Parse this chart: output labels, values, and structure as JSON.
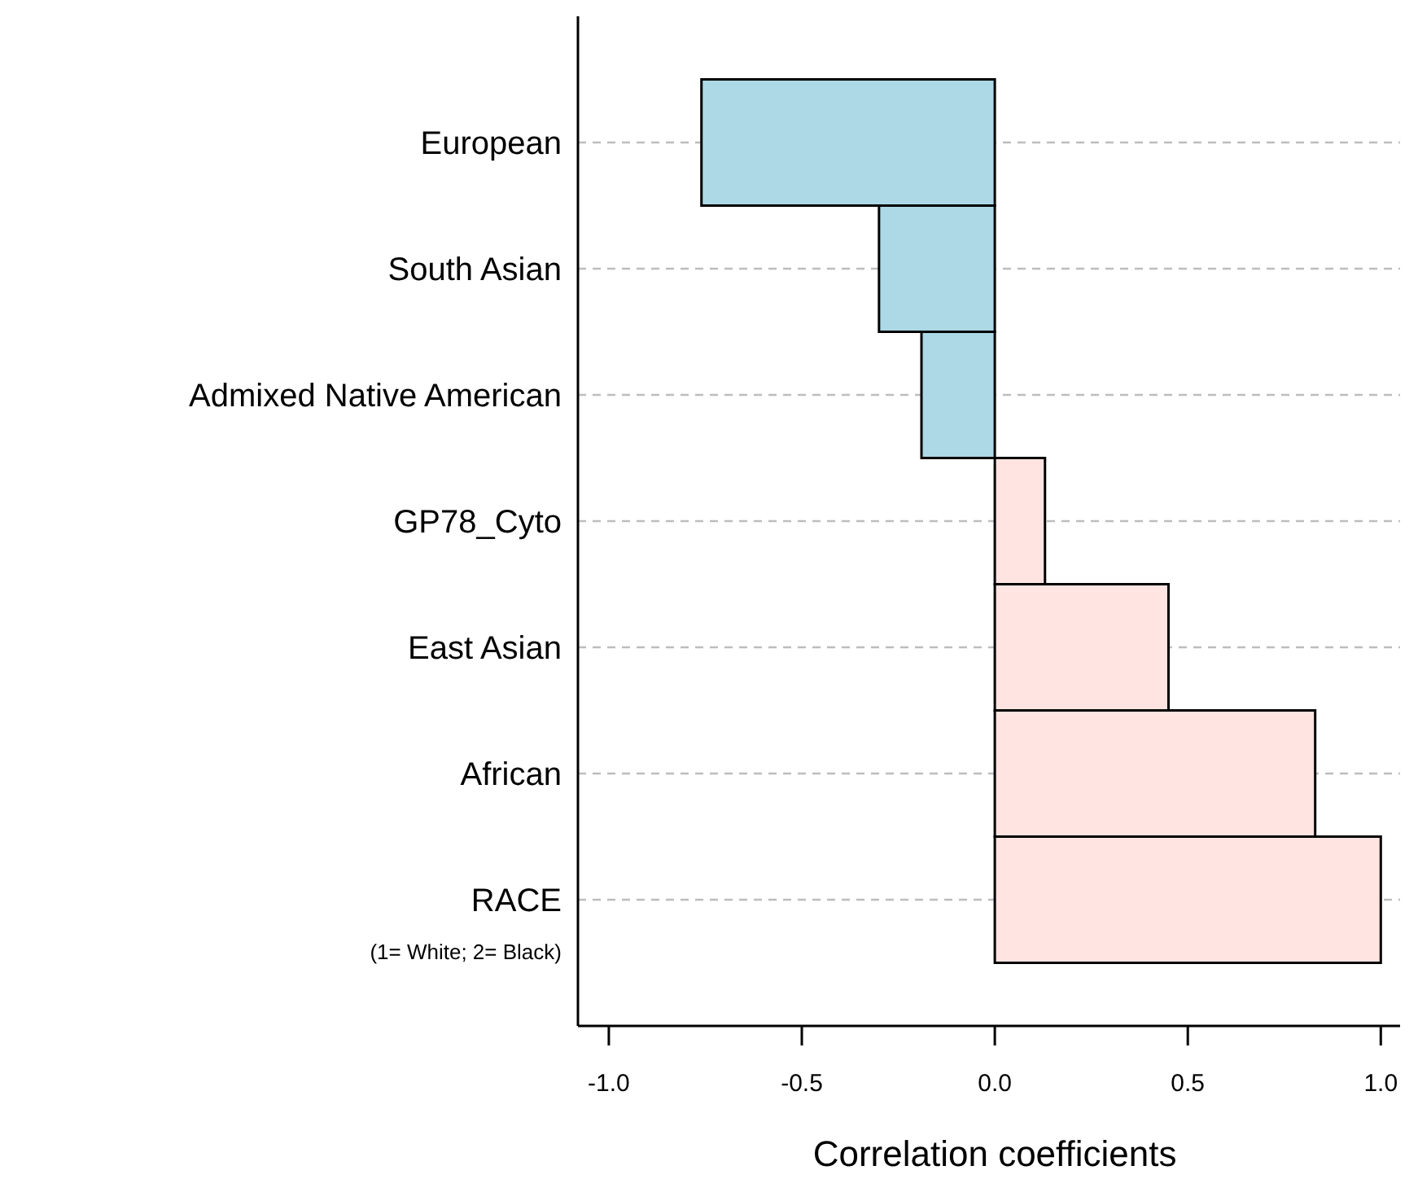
{
  "chart_data": {
    "type": "bar",
    "orientation": "horizontal",
    "categories": [
      "European",
      "South Asian",
      "Admixed Native American",
      "GP78_Cyto",
      "East Asian",
      "African",
      "RACE"
    ],
    "values": [
      -0.76,
      -0.3,
      -0.19,
      0.13,
      0.45,
      0.83,
      1.0
    ],
    "colors": [
      "#add8e6",
      "#add8e6",
      "#add8e6",
      "#ffe4e1",
      "#ffe4e1",
      "#ffe4e1",
      "#ffe4e1"
    ],
    "xlabel": "Correlation coefficients",
    "xlim": [
      -1.08,
      1.05
    ],
    "xticks": [
      {
        "value": -1,
        "label": "-1.0"
      },
      {
        "value": -0.5,
        "label": "-0.5"
      },
      {
        "value": 0,
        "label": "0.0"
      },
      {
        "value": 0.5,
        "label": "0.5"
      },
      {
        "value": 1,
        "label": "1.0"
      }
    ],
    "annotations": [
      "(1= White; 2= Black)"
    ],
    "grid": "y"
  }
}
